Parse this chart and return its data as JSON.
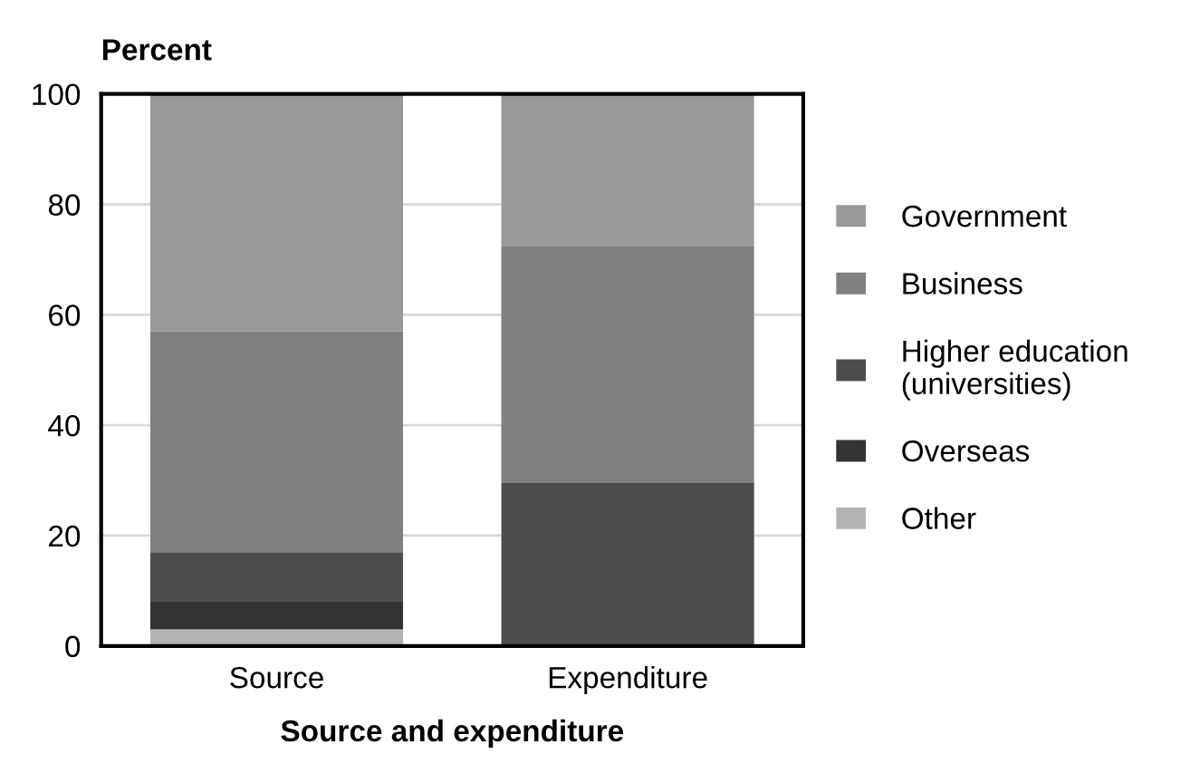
{
  "chart_data": {
    "type": "bar",
    "stacked": true,
    "ylabel": "Percent",
    "xlabel": "Source and expenditure",
    "categories": [
      "Source",
      "Expenditure"
    ],
    "series": [
      {
        "name": "Other",
        "color": "#b3b3b3",
        "values": [
          3,
          0
        ]
      },
      {
        "name": "Overseas",
        "color": "#333333",
        "values": [
          5,
          0
        ]
      },
      {
        "name": "Higher education\n(universities)",
        "color": "#4d4d4d",
        "values": [
          9,
          29.5
        ]
      },
      {
        "name": "Business",
        "color": "#808080",
        "values": [
          40,
          43
        ]
      },
      {
        "name": "Government",
        "color": "#999999",
        "values": [
          43,
          27.5
        ]
      }
    ],
    "ylim": [
      0,
      100
    ],
    "yticks": [
      0,
      20,
      40,
      60,
      80,
      100
    ],
    "grid": "y",
    "legend": "right"
  }
}
